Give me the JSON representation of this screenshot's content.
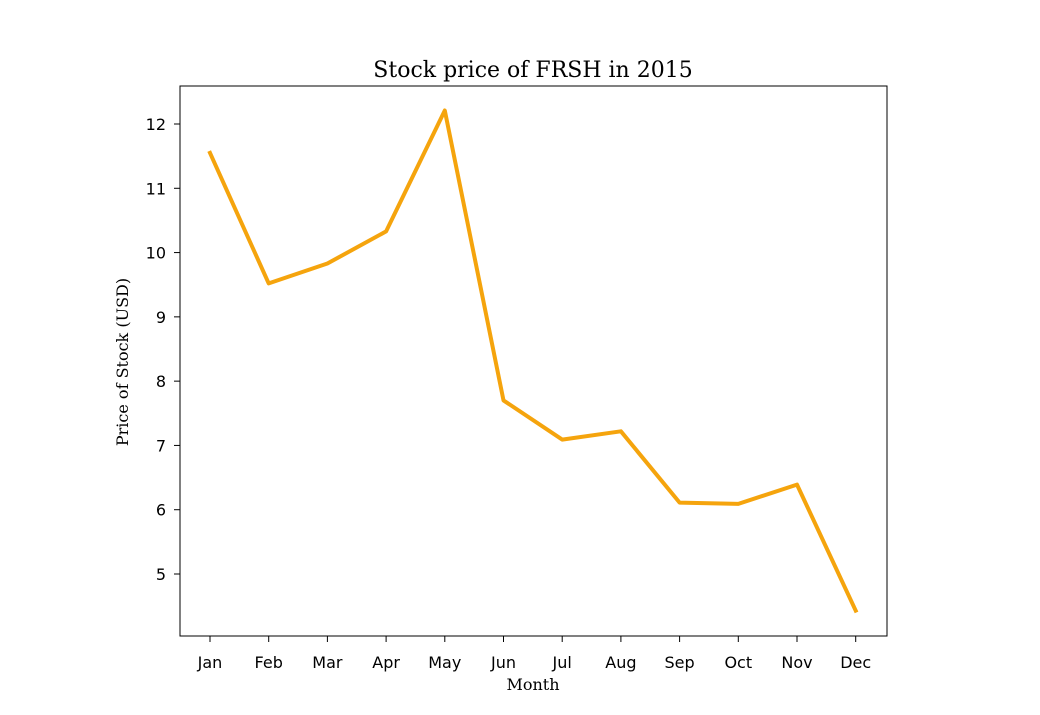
{
  "chart_data": {
    "type": "line",
    "title": "Stock price of FRSH in 2015",
    "xlabel": "Month",
    "ylabel": "Price of Stock (USD)",
    "categories": [
      "Jan",
      "Feb",
      "Mar",
      "Apr",
      "May",
      "Jun",
      "Jul",
      "Aug",
      "Sep",
      "Oct",
      "Nov",
      "Dec"
    ],
    "series": [
      {
        "values": [
          11.55,
          9.52,
          9.83,
          10.33,
          12.21,
          7.7,
          7.09,
          7.22,
          6.11,
          6.09,
          6.39,
          4.43
        ],
        "color": "#f5a40d"
      }
    ],
    "yticks": [
      5,
      6,
      7,
      8,
      9,
      10,
      11,
      12
    ],
    "ylim": [
      4.0,
      12.6
    ],
    "grid": false,
    "legend": "none"
  }
}
